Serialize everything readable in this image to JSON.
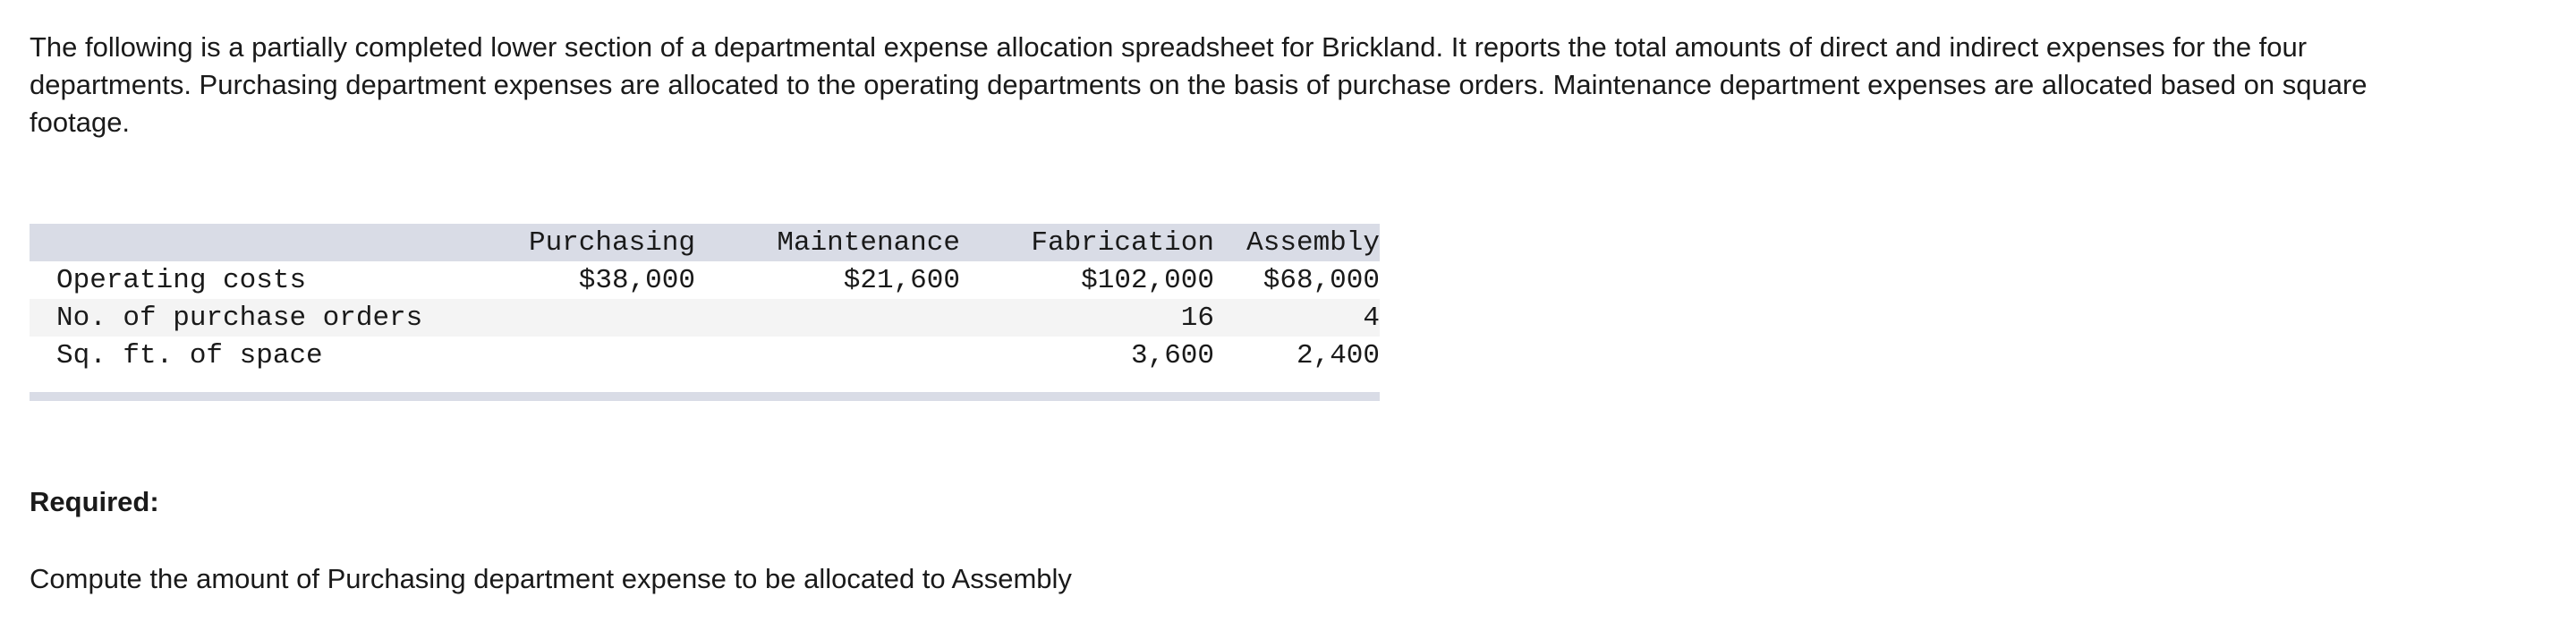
{
  "intro": "The following is a partially completed lower section of a departmental expense allocation spreadsheet for Brickland. It reports the total amounts of direct and indirect expenses for the four departments. Purchasing department expenses are allocated to the operating departments on the basis of purchase orders. Maintenance department expenses are allocated based on square footage.",
  "table": {
    "headers": [
      "Purchasing",
      "Maintenance",
      "Fabrication",
      "Assembly"
    ],
    "rows": [
      {
        "label": "Operating costs",
        "values": [
          "$38,000",
          "$21,600",
          "$102,000",
          "$68,000"
        ]
      },
      {
        "label": "No. of purchase orders",
        "values": [
          "",
          "",
          "16",
          "4"
        ]
      },
      {
        "label": "Sq. ft. of space",
        "values": [
          "",
          "",
          "3,600",
          "2,400"
        ]
      }
    ]
  },
  "required_label": "Required:",
  "question": "Compute the amount of Purchasing department expense to be allocated to Assembly"
}
